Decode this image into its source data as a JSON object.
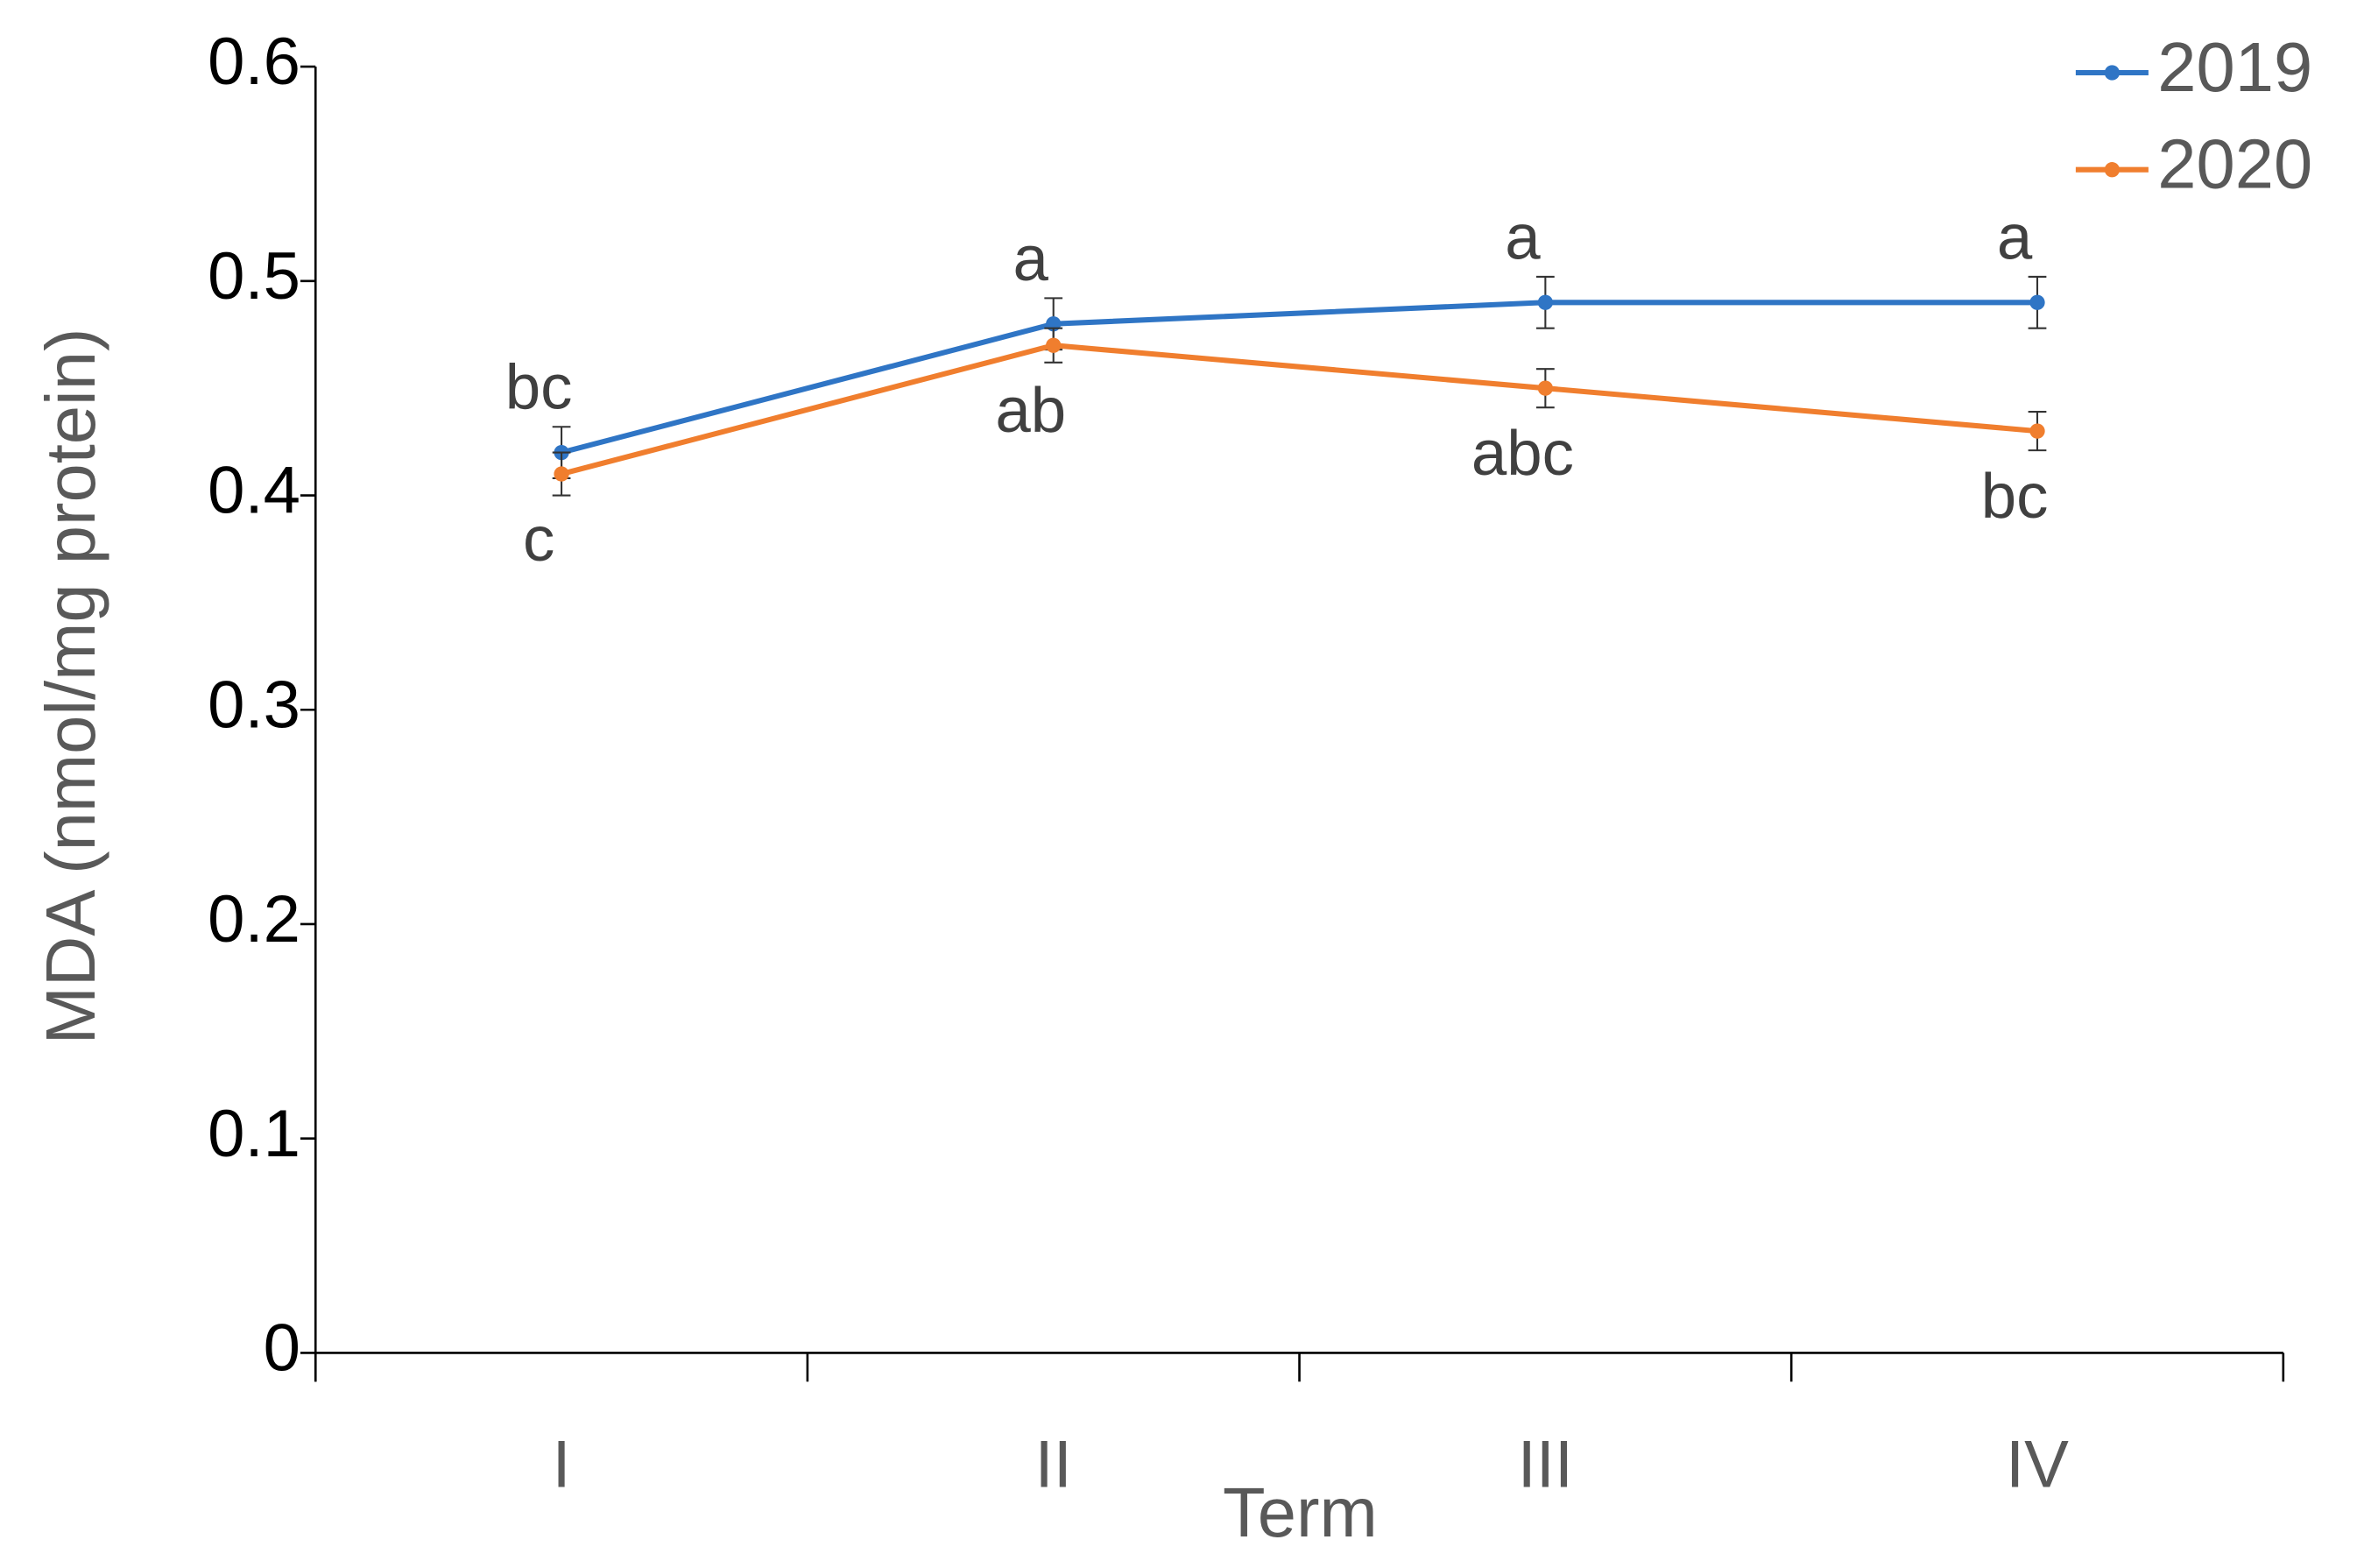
{
  "chart_data": {
    "type": "line",
    "x_label": "Term",
    "y_label": "MDA (nmol/mg protein)",
    "categories": [
      "I",
      "II",
      "III",
      "IV"
    ],
    "series": [
      {
        "name": "2019",
        "color": "#2f75c5",
        "values": [
          0.42,
          0.48,
          0.49,
          0.49
        ],
        "errors": [
          0.012,
          0.012,
          0.012,
          0.012
        ],
        "letters": [
          "bc",
          "a",
          "a",
          "a"
        ]
      },
      {
        "name": "2020",
        "color": "#f07e2e",
        "values": [
          0.41,
          0.47,
          0.45,
          0.43
        ],
        "errors": [
          0.01,
          0.008,
          0.009,
          0.009
        ],
        "letters": [
          "c",
          "ab",
          "abc",
          "bc"
        ]
      }
    ],
    "ylim": [
      0,
      0.6
    ],
    "yticks": [
      0,
      0.1,
      0.2,
      0.3,
      0.4,
      0.5,
      0.6
    ],
    "legend": "top-right"
  }
}
